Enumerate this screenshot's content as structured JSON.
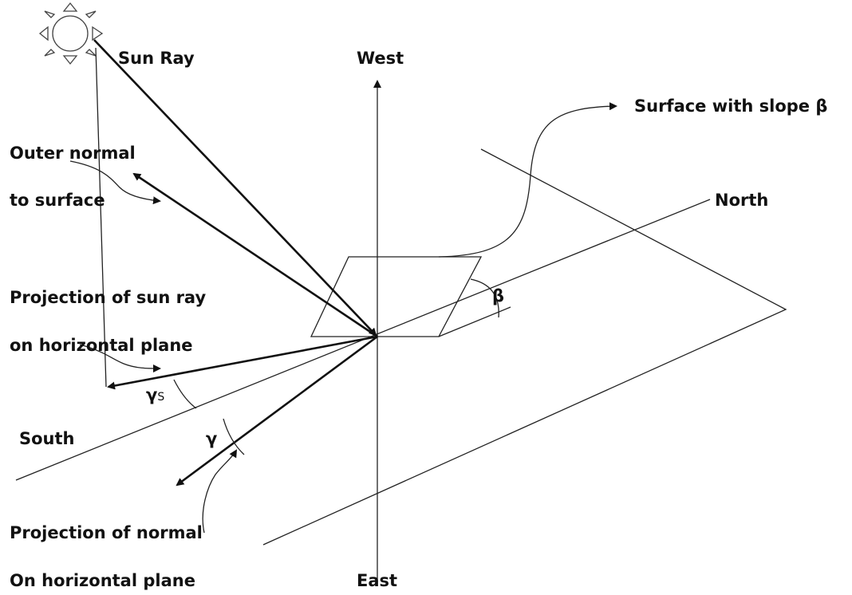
{
  "labels": {
    "sun_ray": "Sun Ray",
    "west": "West",
    "surface": "Surface with slope β",
    "outer_normal_1": "Outer normal",
    "outer_normal_2": "to surface",
    "north": "North",
    "projection_sun_1": "Projection of sun ray",
    "projection_sun_2": "on horizontal plane",
    "beta": "β",
    "gamma_s": {
      "symbol": "γ",
      "subscript": "S"
    },
    "south": "South",
    "gamma": "γ",
    "projection_normal_1": "Projection of normal",
    "projection_normal_2": "On horizontal plane",
    "east": "East"
  }
}
